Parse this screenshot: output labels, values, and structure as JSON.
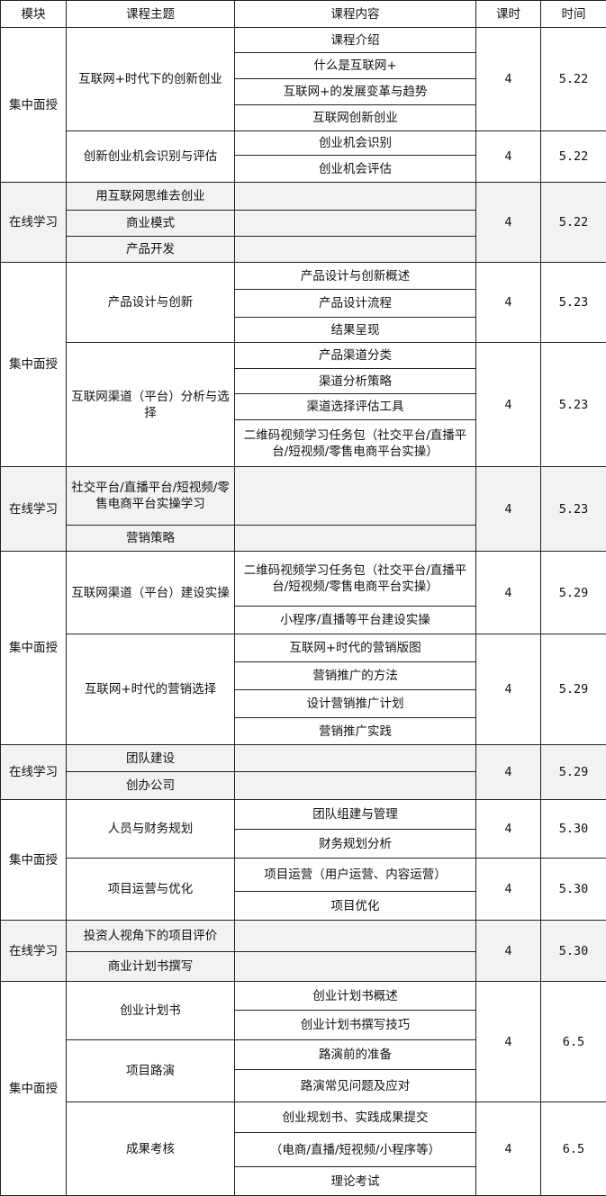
{
  "header": {
    "module": "模块",
    "topic": "课程主题",
    "content": "课程内容",
    "hours": "课时",
    "date": "时间"
  },
  "blocks": [
    {
      "module": "集中面授",
      "online": false,
      "groups": [
        {
          "hours": "4",
          "date": "5.22",
          "topics": [
            {
              "title": "互联网+时代下的创新创业",
              "contents": [
                "课程介绍",
                "什么是互联网+",
                "互联网+的发展变革与趋势",
                "互联网创新创业"
              ]
            }
          ]
        },
        {
          "hours": "4",
          "date": "5.22",
          "topics": [
            {
              "title": "创新创业机会识别与评估",
              "contents": [
                "创业机会识别",
                "创业机会评估"
              ]
            }
          ]
        }
      ]
    },
    {
      "module": "在线学习",
      "online": true,
      "groups": [
        {
          "hours": "4",
          "date": "5.22",
          "topics": [
            {
              "title": "用互联网思维去创业",
              "contents": [
                ""
              ]
            },
            {
              "title": "商业模式",
              "contents": [
                ""
              ]
            },
            {
              "title": "产品开发",
              "contents": [
                ""
              ]
            }
          ]
        }
      ]
    },
    {
      "module": "集中面授",
      "online": false,
      "groups": [
        {
          "hours": "4",
          "date": "5.23",
          "topics": [
            {
              "title": "产品设计与创新",
              "contents": [
                "产品设计与创新概述",
                "产品设计流程",
                "结果呈现"
              ]
            }
          ]
        },
        {
          "hours": "4",
          "date": "5.23",
          "topics": [
            {
              "title": "互联网渠道（平台）分析与选择",
              "contents": [
                "产品渠道分类",
                "渠道分析策略",
                "渠道选择评估工具",
                "二维码视频学习任务包（社交平台/直播平台/短视频/零售电商平台实操）"
              ]
            }
          ]
        }
      ]
    },
    {
      "module": "在线学习",
      "online": true,
      "groups": [
        {
          "hours": "4",
          "date": "5.23",
          "topics": [
            {
              "title": "社交平台/直播平台/短视频/零售电商平台实操学习",
              "contents": [
                ""
              ]
            },
            {
              "title": "营销策略",
              "contents": [
                ""
              ]
            }
          ]
        }
      ]
    },
    {
      "module": "集中面授",
      "online": false,
      "groups": [
        {
          "hours": "4",
          "date": "5.29",
          "topics": [
            {
              "title": "互联网渠道（平台）建设实操",
              "contents": [
                "二维码视频学习任务包（社交平台/直播平台/短视频/零售电商平台实操）",
                "小程序/直播等平台建设实操"
              ]
            }
          ]
        },
        {
          "hours": "4",
          "date": "5.29",
          "topics": [
            {
              "title": "互联网+时代的营销选择",
              "contents": [
                "互联网+时代的营销版图",
                "营销推广的方法",
                "设计营销推广计划",
                "营销推广实践"
              ]
            }
          ]
        }
      ]
    },
    {
      "module": "在线学习",
      "online": true,
      "groups": [
        {
          "hours": "4",
          "date": "5.29",
          "topics": [
            {
              "title": "团队建设",
              "contents": [
                ""
              ]
            },
            {
              "title": "创办公司",
              "contents": [
                ""
              ]
            }
          ]
        }
      ]
    },
    {
      "module": "集中面授",
      "online": false,
      "groups": [
        {
          "hours": "4",
          "date": "5.30",
          "topics": [
            {
              "title": "人员与财务规划",
              "contents": [
                "团队组建与管理",
                "财务规划分析"
              ]
            }
          ]
        },
        {
          "hours": "4",
          "date": "5.30",
          "topics": [
            {
              "title": "项目运营与优化",
              "contents": [
                "项目运营（用户运营、内容运营）",
                "项目优化"
              ]
            }
          ]
        }
      ]
    },
    {
      "module": "在线学习",
      "online": true,
      "groups": [
        {
          "hours": "4",
          "date": "5.30",
          "topics": [
            {
              "title": "投资人视角下的项目评价",
              "contents": [
                ""
              ]
            },
            {
              "title": "商业计划书撰写",
              "contents": [
                ""
              ]
            }
          ]
        }
      ]
    },
    {
      "module": "集中面授",
      "online": false,
      "groups": [
        {
          "hours": "4",
          "date": "6.5",
          "topics": [
            {
              "title": "创业计划书",
              "contents": [
                "创业计划书概述",
                "创业计划书撰写技巧"
              ]
            },
            {
              "title": "项目路演",
              "contents": [
                "路演前的准备",
                "路演常见问题及应对"
              ]
            }
          ]
        },
        {
          "hours": "4",
          "date": "6.5",
          "topics": [
            {
              "title": "成果考核",
              "contents": [
                "创业规划书、实践成果提交",
                "（电商/直播/短视频/小程序等）",
                "理论考试"
              ]
            }
          ]
        }
      ]
    }
  ]
}
